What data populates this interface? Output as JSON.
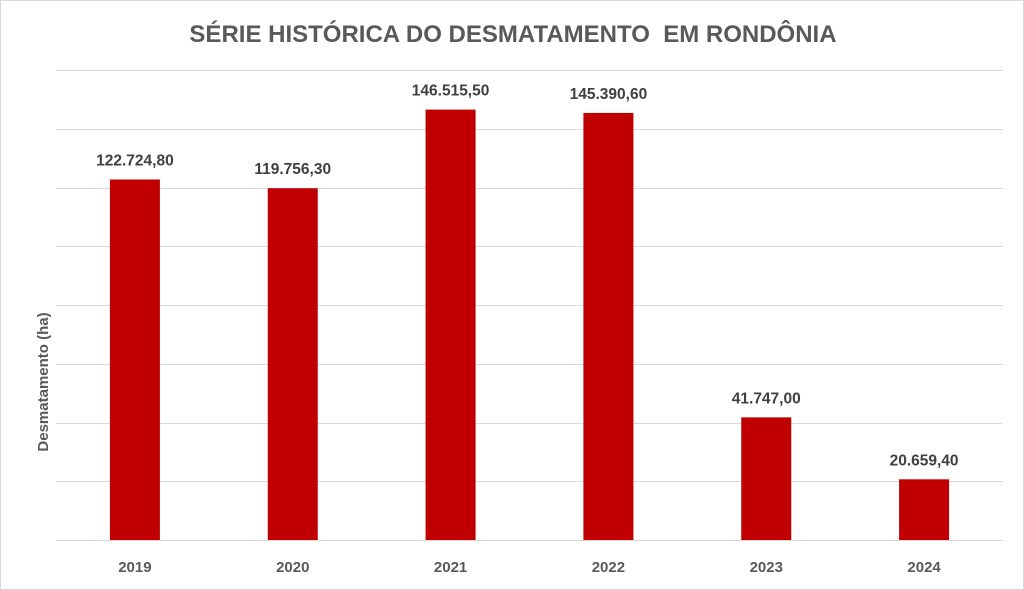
{
  "chart_data": {
    "type": "bar",
    "title": "SÉRIE HISTÓRICA DO DESMATAMENTO  EM RONDÔNIA",
    "xlabel": "",
    "ylabel": "Desmatamento (ha)",
    "categories": [
      "2019",
      "2020",
      "2021",
      "2022",
      "2023",
      "2024"
    ],
    "values": [
      122724.8,
      119756.3,
      146515.5,
      145390.6,
      41747.0,
      20659.4
    ],
    "data_labels": [
      "122.724,80",
      "119.756,30",
      "146.515,50",
      "145.390,60",
      "41.747,00",
      "20.659,40"
    ],
    "ylim": [
      0,
      160000
    ],
    "y_tick_step": 20000,
    "y_tick_labels_visible": false,
    "grid": true,
    "legend": "none",
    "bar_color": "#c00000"
  }
}
